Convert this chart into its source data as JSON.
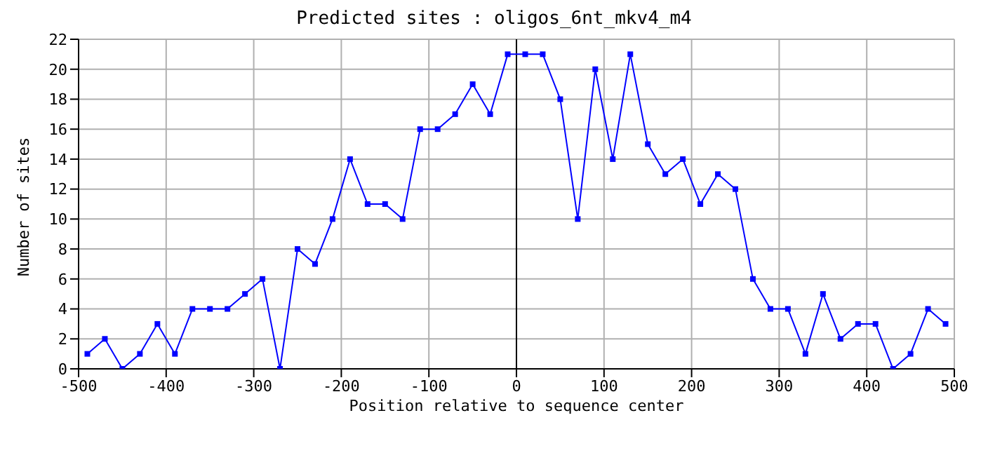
{
  "chart_data": {
    "type": "line",
    "title": "Predicted sites : oligos_6nt_mkv4_m4",
    "xlabel": "Position relative to sequence center",
    "ylabel": "Number of sites",
    "x": [
      -490,
      -470,
      -450,
      -430,
      -410,
      -390,
      -370,
      -350,
      -330,
      -310,
      -290,
      -270,
      -250,
      -230,
      -210,
      -190,
      -170,
      -150,
      -130,
      -110,
      -90,
      -70,
      -50,
      -30,
      -10,
      10,
      30,
      50,
      70,
      90,
      110,
      130,
      150,
      170,
      190,
      210,
      230,
      250,
      270,
      290,
      310,
      330,
      350,
      370,
      390,
      410,
      430,
      450,
      470,
      490
    ],
    "series": [
      {
        "color": "#0000ff",
        "values": [
          1,
          2,
          0,
          1,
          3,
          1,
          4,
          4,
          4,
          5,
          6,
          0,
          8,
          7,
          10,
          14,
          11,
          11,
          10,
          16,
          16,
          17,
          19,
          17,
          21,
          21,
          21,
          18,
          10,
          20,
          14,
          21,
          15,
          13,
          14,
          11,
          13,
          12,
          6,
          4,
          4,
          1,
          5,
          2,
          3,
          3,
          0,
          1,
          4,
          3
        ]
      }
    ],
    "xlim": [
      -500,
      500
    ],
    "xticks": [
      -500,
      -400,
      -300,
      -200,
      -100,
      0,
      100,
      200,
      300,
      400,
      500
    ],
    "ylim": [
      0,
      22
    ],
    "yticks": [
      0,
      2,
      4,
      6,
      8,
      10,
      12,
      14,
      16,
      18,
      20,
      22
    ],
    "ref_lines": [
      {
        "axis": "x",
        "value": 0,
        "color": "#000000"
      }
    ],
    "grid": true,
    "marker": "square",
    "line_style": "solid",
    "legend": false
  }
}
